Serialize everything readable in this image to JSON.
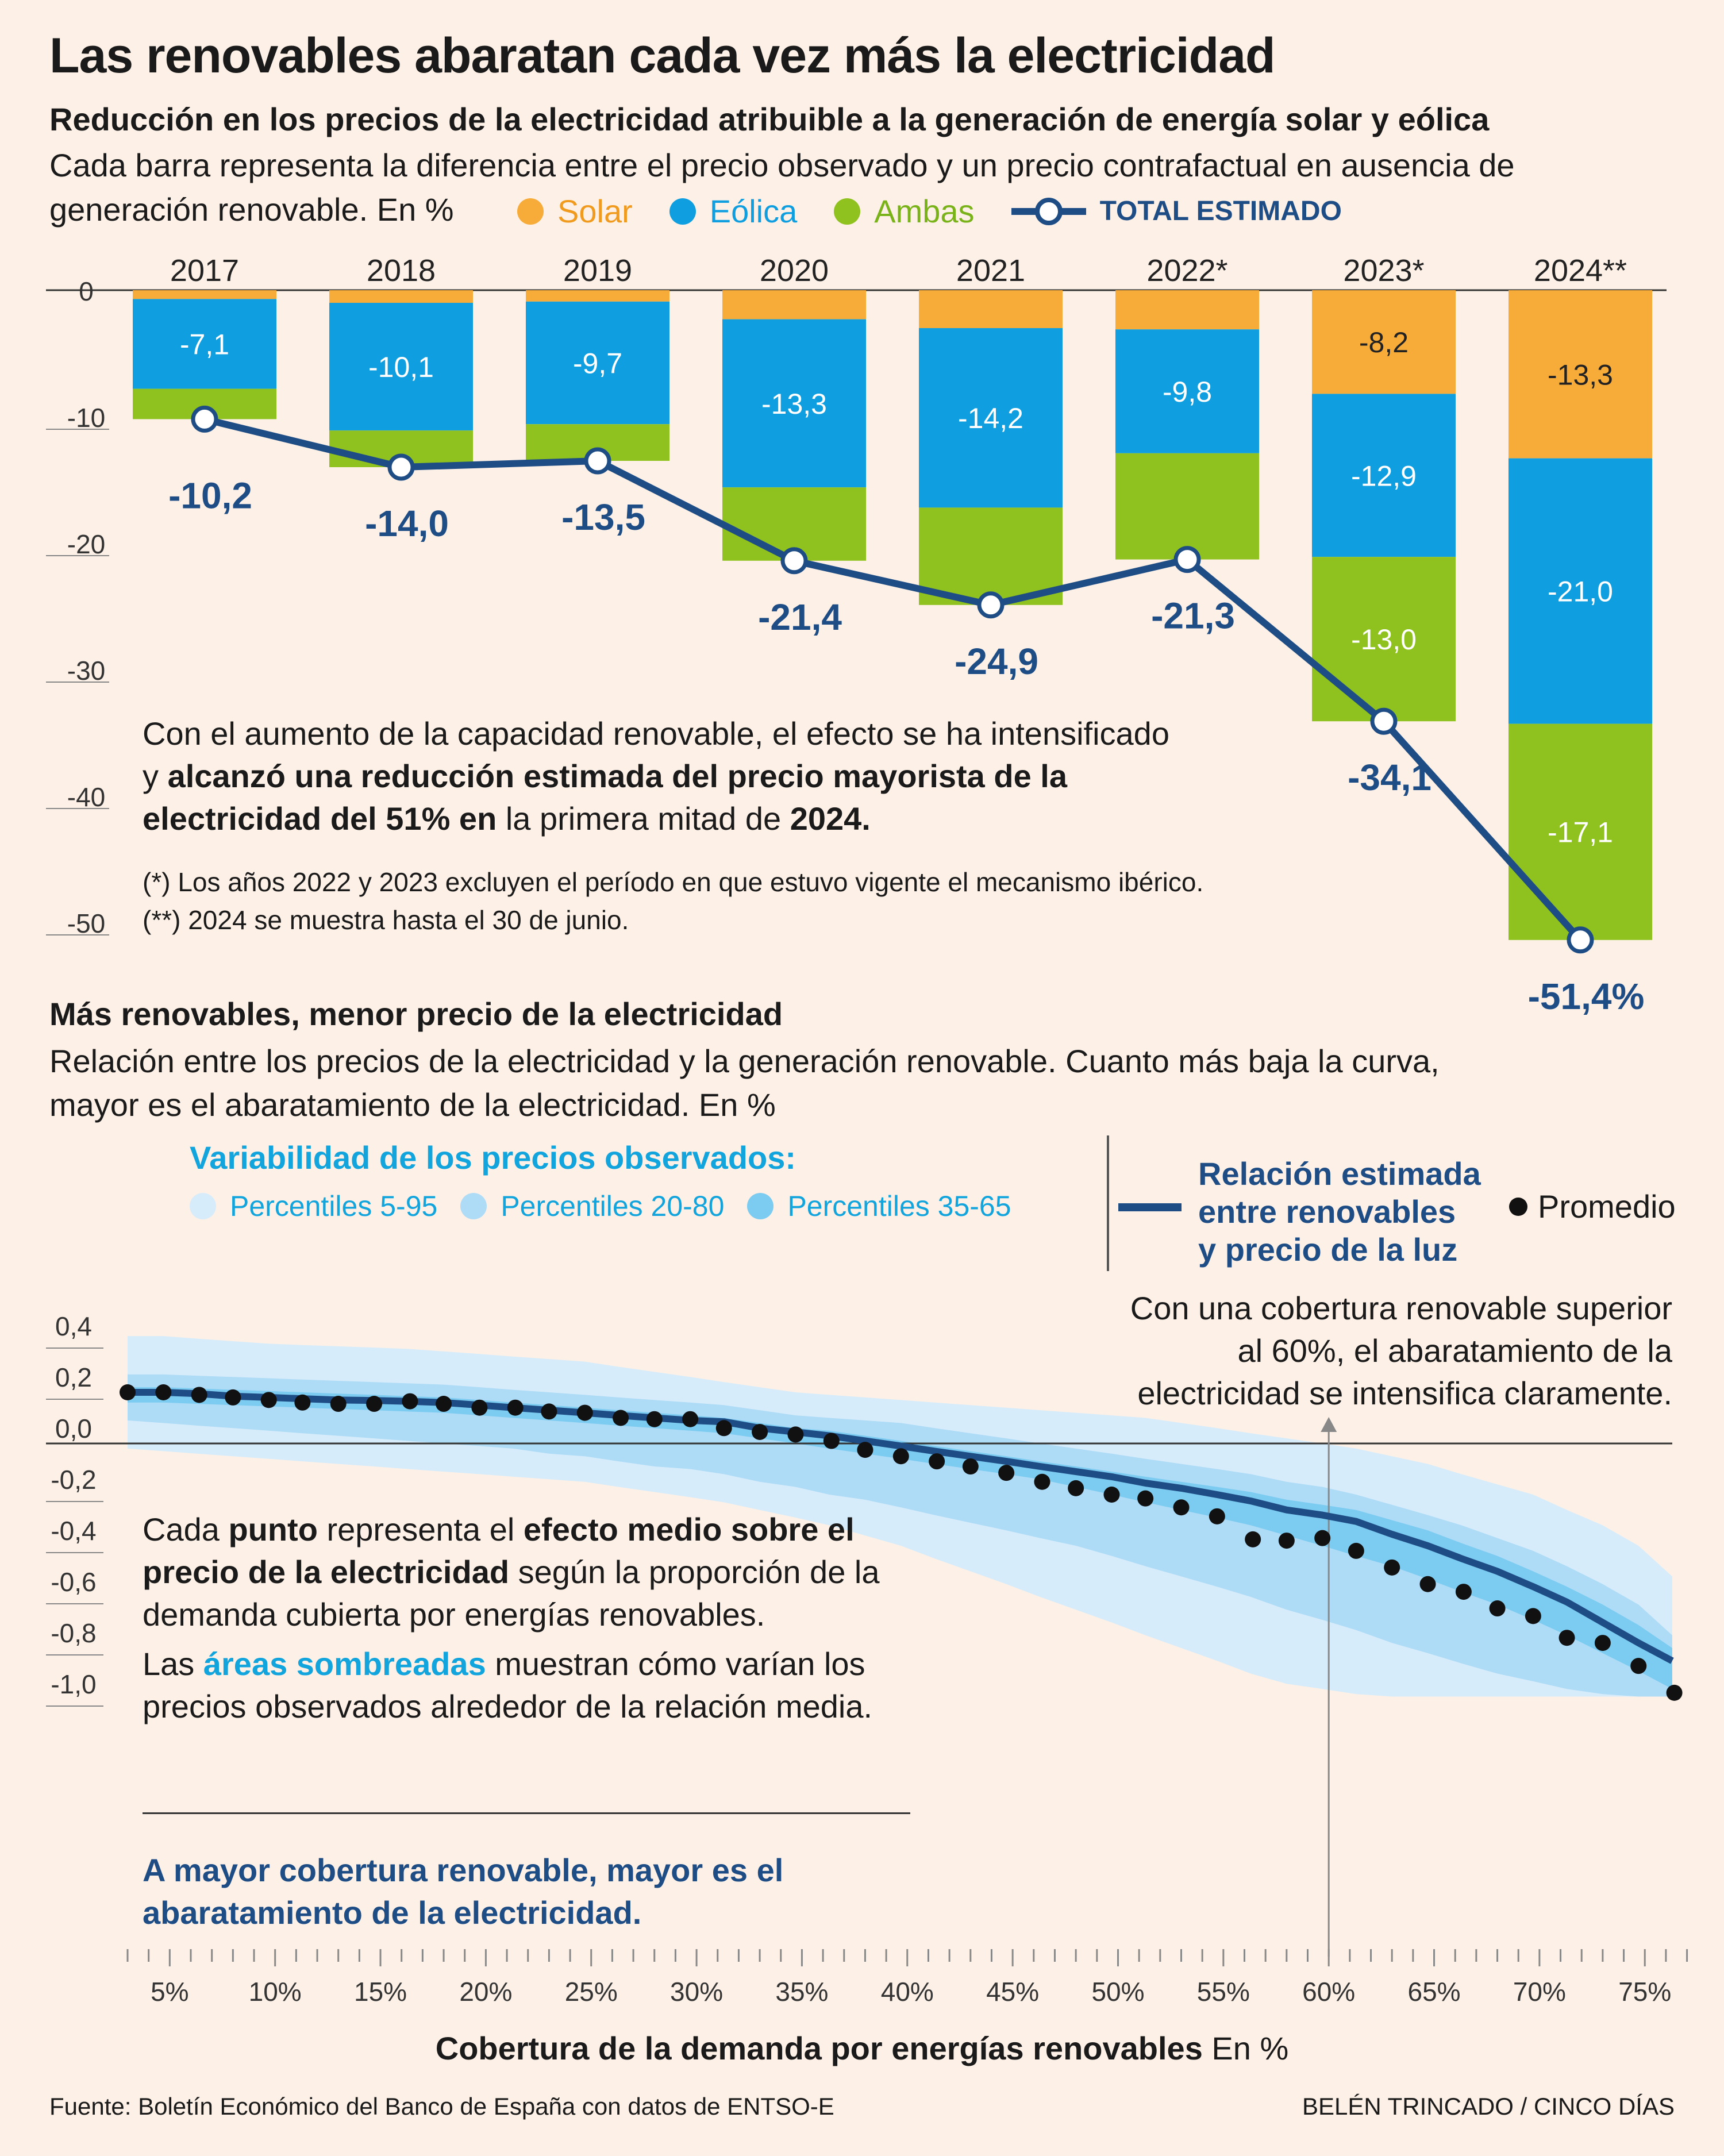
{
  "main_title": "Las renovables abaratan cada vez más la electricidad",
  "chart1": {
    "title": "Reducción en los precios de la electricidad atribuible a la generación de energía solar y eólica",
    "subtitle_1": "Cada barra representa la diferencia entre el precio observado y un precio contrafactual en ausencia de",
    "subtitle_2": "generación renovable. En %",
    "legend": {
      "solar": "Solar",
      "eolica": "Eólica",
      "ambas": "Ambas",
      "total": "TOTAL ESTIMADO"
    },
    "note_line1": "Con el aumento de la capacidad renovable, el efecto se ha intensificado",
    "note_line2a": "y ",
    "note_line2b": "alcanzó una reducción estimada del precio mayorista de la",
    "note_line3a": "electricidad del 51% en",
    "note_line3b": " la primera mitad de ",
    "note_line3c": "2024.",
    "footnote1": "(*) Los años 2022 y 2023 excluyen el período en que estuvo vigente el mecanismo ibérico.",
    "footnote2": "(**) 2024 se muestra hasta el 30 de junio."
  },
  "chart2": {
    "title": "Más renovables, menor precio de la electricidad",
    "subtitle_1": "Relación entre los precios de la electricidad y la generación renovable. Cuanto más baja la curva,",
    "subtitle_2": "mayor es el abaratamiento de la electricidad. En %",
    "band_legend_title": "Variabilidad de los precios observados:",
    "band_legend": [
      "Percentiles 5-95",
      "Percentiles 20-80",
      "Percentiles 35-65"
    ],
    "line_legend_1": "Relación estimada",
    "line_legend_2": "entre renovables",
    "line_legend_3": "y precio de la luz",
    "dot_legend": "Promedio",
    "annotation_1": "Con una cobertura renovable superior",
    "annotation_2": "al 60%, el abaratamiento de la",
    "annotation_3": "electricidad se intensifica claramente.",
    "note_a1": "Cada ",
    "note_a2": "punto",
    "note_a3": " representa el ",
    "note_a4": "efecto medio sobre el",
    "note_b1": "precio de la electricidad",
    "note_b2": " según la proporción de la",
    "note_c": "demanda cubierta por energías renovables.",
    "note_d1": "Las ",
    "note_d2": "áreas sombreadas",
    "note_d3": " muestran cómo varían los",
    "note_e": "precios observados alrededor de la relación media.",
    "conclusion_1": "A mayor cobertura renovable, mayor es el",
    "conclusion_2": "abaratamiento de la electricidad.",
    "xlabel_bold": "Cobertura de la demanda por energías renovables",
    "xlabel_unit": " En %"
  },
  "source": "Fuente: Boletín Económico del Banco de España con datos de ENTSO-E",
  "credit": "BELÉN TRINCADO / CINCO DÍAS",
  "colors": {
    "solar": "#f7ac3a",
    "eolica": "#0f9fe0",
    "ambas": "#8fc21f",
    "total": "#1e4d85",
    "band_outer": "#d6ecfa",
    "band_mid": "#aedbf6",
    "band_inner": "#7ccbf1"
  },
  "chart_data": [
    {
      "type": "bar",
      "stacked": true,
      "categories": [
        "2017",
        "2018",
        "2019",
        "2020",
        "2021",
        "2022*",
        "2023*",
        "2024**"
      ],
      "yticks": [
        "0",
        "-10",
        "-20",
        "-30",
        "-40",
        "-50"
      ],
      "ylim": [
        -52,
        0
      ],
      "series": [
        {
          "name": "Solar",
          "values": [
            -0.7,
            -1.0,
            -0.9,
            -2.3,
            -3.0,
            -3.1,
            -8.2,
            -13.3
          ],
          "labels": [
            "",
            "",
            "",
            "",
            "",
            "",
            "-8,2",
            "-13,3"
          ]
        },
        {
          "name": "Eólica",
          "values": [
            -7.1,
            -10.1,
            -9.7,
            -13.3,
            -14.2,
            -9.8,
            -12.9,
            -21.0
          ],
          "labels": [
            "-7,1",
            "-10,1",
            "-9,7",
            "-13,3",
            "-14,2",
            "-9,8",
            "-12,9",
            "-21,0"
          ]
        },
        {
          "name": "Ambas",
          "values": [
            -2.4,
            -2.9,
            -2.9,
            -5.8,
            -7.7,
            -8.4,
            -13.0,
            -17.1
          ],
          "labels": [
            "",
            "",
            "",
            "",
            "",
            "",
            "-13,0",
            "-17,1"
          ]
        }
      ],
      "total": {
        "name": "TOTAL ESTIMADO",
        "values": [
          -10.2,
          -14.0,
          -13.5,
          -21.4,
          -24.9,
          -21.3,
          -34.1,
          -51.4
        ],
        "labels": [
          "-10,2",
          "-14,0",
          "-13,5",
          "-21,4",
          "-24,9",
          "-21,3",
          "-34,1",
          "-51,4%"
        ]
      }
    },
    {
      "type": "line",
      "xlabel": "Cobertura de la demanda por energías renovables En %",
      "xticks": [
        "5%",
        "10%",
        "15%",
        "20%",
        "25%",
        "30%",
        "35%",
        "40%",
        "45%",
        "50%",
        "55%",
        "60%",
        "65%",
        "70%",
        "75%"
      ],
      "yticks": [
        "0,4",
        "0,2",
        "0,0",
        "-0,2",
        "-0,4",
        "-0,6",
        "-0,8",
        "-1,0"
      ],
      "ylim": [
        -1.0,
        0.4
      ],
      "xlim": [
        3,
        77
      ],
      "x": [
        3,
        4.7,
        6.3,
        8,
        9.7,
        11.3,
        13,
        14.7,
        16.3,
        18,
        19.7,
        21.3,
        23,
        24.7,
        26.3,
        28,
        29.7,
        31.3,
        33,
        34.7,
        36.3,
        38,
        39.7,
        41.3,
        43,
        44.7,
        46.3,
        48,
        49.7,
        51.3,
        53,
        54.7,
        56.3,
        58,
        59.7,
        61.3,
        63,
        64.7,
        66.3,
        68,
        69.7,
        71.3,
        73,
        74.7,
        76.3
      ],
      "line": [
        0.2,
        0.2,
        0.195,
        0.185,
        0.18,
        0.175,
        0.17,
        0.168,
        0.165,
        0.16,
        0.15,
        0.14,
        0.13,
        0.12,
        0.11,
        0.1,
        0.09,
        0.085,
        0.06,
        0.045,
        0.03,
        0.01,
        -0.01,
        -0.03,
        -0.05,
        -0.07,
        -0.09,
        -0.11,
        -0.13,
        -0.155,
        -0.175,
        -0.2,
        -0.225,
        -0.26,
        -0.28,
        -0.305,
        -0.355,
        -0.4,
        -0.45,
        -0.5,
        -0.56,
        -0.62,
        -0.7,
        -0.78,
        -0.85
      ],
      "points": [
        [
          3,
          0.2
        ],
        [
          4.7,
          0.2
        ],
        [
          6.4,
          0.19
        ],
        [
          8,
          0.18
        ],
        [
          9.7,
          0.17
        ],
        [
          11.3,
          0.16
        ],
        [
          13,
          0.155
        ],
        [
          14.7,
          0.155
        ],
        [
          16.4,
          0.165
        ],
        [
          18,
          0.155
        ],
        [
          19.7,
          0.14
        ],
        [
          21.4,
          0.14
        ],
        [
          23,
          0.125
        ],
        [
          24.7,
          0.12
        ],
        [
          26.4,
          0.1
        ],
        [
          28,
          0.095
        ],
        [
          29.7,
          0.095
        ],
        [
          31.3,
          0.06
        ],
        [
          33,
          0.045
        ],
        [
          34.7,
          0.035
        ],
        [
          36.4,
          0.01
        ],
        [
          38,
          -0.025
        ],
        [
          39.7,
          -0.05
        ],
        [
          41.4,
          -0.07
        ],
        [
          43,
          -0.09
        ],
        [
          44.7,
          -0.115
        ],
        [
          46.4,
          -0.15
        ],
        [
          48,
          -0.175
        ],
        [
          49.7,
          -0.2
        ],
        [
          51.3,
          -0.215
        ],
        [
          53,
          -0.25
        ],
        [
          54.7,
          -0.285
        ],
        [
          56.4,
          -0.375
        ],
        [
          58,
          -0.38
        ],
        [
          59.7,
          -0.37
        ],
        [
          61.3,
          -0.42
        ],
        [
          63,
          -0.485
        ],
        [
          64.7,
          -0.55
        ],
        [
          66.4,
          -0.58
        ],
        [
          68,
          -0.645
        ],
        [
          69.7,
          -0.675
        ],
        [
          71.3,
          -0.76
        ],
        [
          73,
          -0.78
        ],
        [
          74.7,
          -0.87
        ],
        [
          76.4,
          -0.975
        ]
      ],
      "bands": [
        {
          "name": "Percentiles 5-95",
          "upper": [
            0.42,
            0.42,
            0.41,
            0.4,
            0.39,
            0.385,
            0.38,
            0.375,
            0.37,
            0.36,
            0.35,
            0.34,
            0.33,
            0.32,
            0.3,
            0.28,
            0.26,
            0.24,
            0.22,
            0.2,
            0.19,
            0.18,
            0.17,
            0.16,
            0.15,
            0.14,
            0.13,
            0.12,
            0.11,
            0.1,
            0.08,
            0.06,
            0.04,
            0.02,
            0.0,
            -0.02,
            -0.05,
            -0.08,
            -0.12,
            -0.16,
            -0.2,
            -0.26,
            -0.32,
            -0.4,
            -0.52
          ],
          "lower": [
            -0.02,
            -0.03,
            -0.04,
            -0.05,
            -0.06,
            -0.07,
            -0.08,
            -0.09,
            -0.1,
            -0.11,
            -0.12,
            -0.13,
            -0.14,
            -0.15,
            -0.17,
            -0.19,
            -0.21,
            -0.23,
            -0.26,
            -0.29,
            -0.32,
            -0.36,
            -0.4,
            -0.45,
            -0.5,
            -0.55,
            -0.6,
            -0.65,
            -0.7,
            -0.75,
            -0.8,
            -0.85,
            -0.9,
            -0.94,
            -0.96,
            -0.98,
            -0.99,
            -0.99,
            -0.99,
            -0.99,
            -0.99,
            -0.99,
            -0.99,
            -0.99,
            -0.99
          ]
        },
        {
          "name": "Percentiles 20-80",
          "upper": [
            0.27,
            0.27,
            0.265,
            0.26,
            0.255,
            0.25,
            0.245,
            0.24,
            0.235,
            0.23,
            0.22,
            0.21,
            0.2,
            0.19,
            0.18,
            0.17,
            0.16,
            0.15,
            0.13,
            0.11,
            0.1,
            0.09,
            0.08,
            0.06,
            0.04,
            0.02,
            0.0,
            -0.02,
            -0.04,
            -0.06,
            -0.08,
            -0.1,
            -0.12,
            -0.15,
            -0.17,
            -0.2,
            -0.24,
            -0.28,
            -0.32,
            -0.37,
            -0.42,
            -0.48,
            -0.55,
            -0.63,
            -0.75
          ],
          "lower": [
            0.09,
            0.08,
            0.07,
            0.06,
            0.05,
            0.04,
            0.03,
            0.02,
            0.01,
            0.0,
            -0.01,
            -0.02,
            -0.04,
            -0.05,
            -0.07,
            -0.09,
            -0.1,
            -0.12,
            -0.15,
            -0.17,
            -0.2,
            -0.22,
            -0.25,
            -0.28,
            -0.31,
            -0.34,
            -0.37,
            -0.4,
            -0.44,
            -0.48,
            -0.52,
            -0.56,
            -0.6,
            -0.65,
            -0.69,
            -0.73,
            -0.78,
            -0.82,
            -0.86,
            -0.9,
            -0.93,
            -0.96,
            -0.98,
            -0.99,
            -0.99
          ]
        },
        {
          "name": "Percentiles 35-65",
          "upper": [
            0.22,
            0.22,
            0.215,
            0.21,
            0.205,
            0.2,
            0.195,
            0.19,
            0.185,
            0.18,
            0.17,
            0.16,
            0.15,
            0.14,
            0.13,
            0.12,
            0.11,
            0.1,
            0.08,
            0.06,
            0.05,
            0.03,
            0.01,
            -0.01,
            -0.03,
            -0.05,
            -0.07,
            -0.09,
            -0.11,
            -0.13,
            -0.15,
            -0.17,
            -0.19,
            -0.22,
            -0.24,
            -0.26,
            -0.3,
            -0.34,
            -0.39,
            -0.44,
            -0.5,
            -0.56,
            -0.63,
            -0.71,
            -0.8
          ],
          "lower": [
            0.16,
            0.16,
            0.155,
            0.15,
            0.145,
            0.14,
            0.135,
            0.13,
            0.125,
            0.12,
            0.11,
            0.1,
            0.09,
            0.08,
            0.07,
            0.06,
            0.05,
            0.04,
            0.02,
            0.0,
            -0.02,
            -0.04,
            -0.06,
            -0.08,
            -0.1,
            -0.12,
            -0.14,
            -0.17,
            -0.2,
            -0.23,
            -0.26,
            -0.29,
            -0.32,
            -0.36,
            -0.4,
            -0.44,
            -0.48,
            -0.53,
            -0.58,
            -0.63,
            -0.69,
            -0.75,
            -0.82,
            -0.89,
            -0.96
          ]
        }
      ],
      "annotation_x": 60
    }
  ]
}
